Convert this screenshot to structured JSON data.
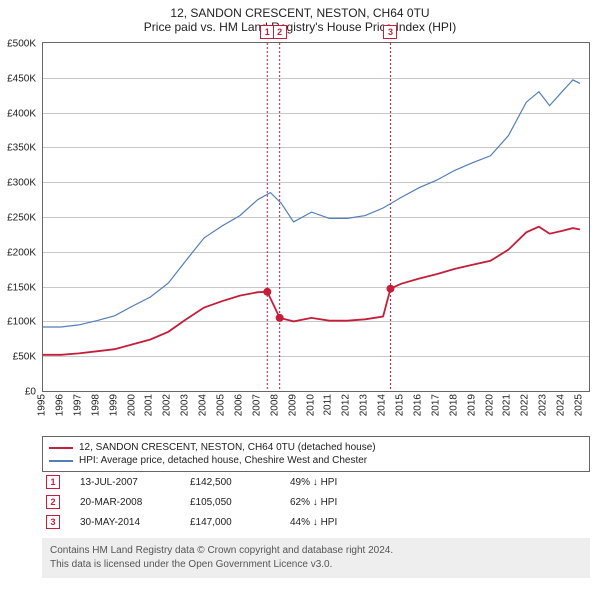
{
  "title_line1": "12, SANDON CRESCENT, NESTON, CH64 0TU",
  "title_line2": "Price paid vs. HM Land Registry's House Price Index (HPI)",
  "chart": {
    "y_min": 0,
    "y_max": 500000,
    "y_step": 50000,
    "y_prefix": "£",
    "y_suffix_k": "K",
    "x_min": 1995,
    "x_max": 2025.5,
    "x_ticks": [
      1995,
      1996,
      1997,
      1998,
      1999,
      2000,
      2001,
      2002,
      2003,
      2004,
      2005,
      2006,
      2007,
      2008,
      2009,
      2010,
      2011,
      2012,
      2013,
      2014,
      2015,
      2016,
      2017,
      2018,
      2019,
      2020,
      2021,
      2022,
      2023,
      2024,
      2025
    ],
    "grid_color": "#c8c8c8",
    "border_color": "#666666",
    "series": [
      {
        "name": "hpi",
        "color": "#527fb9",
        "width": 1.2,
        "points": [
          [
            1995,
            92000
          ],
          [
            1996,
            92000
          ],
          [
            1997,
            95000
          ],
          [
            1998,
            101000
          ],
          [
            1999,
            108000
          ],
          [
            2000,
            122000
          ],
          [
            2001,
            135000
          ],
          [
            2002,
            155000
          ],
          [
            2003,
            188000
          ],
          [
            2004,
            220000
          ],
          [
            2005,
            237000
          ],
          [
            2006,
            252000
          ],
          [
            2007,
            275000
          ],
          [
            2007.7,
            285000
          ],
          [
            2008.3,
            270000
          ],
          [
            2009,
            243000
          ],
          [
            2010,
            257000
          ],
          [
            2011,
            248000
          ],
          [
            2012,
            248000
          ],
          [
            2013,
            252000
          ],
          [
            2014,
            263000
          ],
          [
            2015,
            278000
          ],
          [
            2016,
            292000
          ],
          [
            2017,
            303000
          ],
          [
            2018,
            317000
          ],
          [
            2019,
            328000
          ],
          [
            2020,
            338000
          ],
          [
            2021,
            367000
          ],
          [
            2022,
            415000
          ],
          [
            2022.7,
            430000
          ],
          [
            2023.3,
            410000
          ],
          [
            2024,
            430000
          ],
          [
            2024.6,
            447000
          ],
          [
            2025,
            442000
          ]
        ]
      },
      {
        "name": "property",
        "color": "#c41e3a",
        "width": 1.8,
        "points": [
          [
            1995,
            52000
          ],
          [
            1996,
            52000
          ],
          [
            1997,
            54000
          ],
          [
            1998,
            57000
          ],
          [
            1999,
            60000
          ],
          [
            2000,
            67000
          ],
          [
            2001,
            74000
          ],
          [
            2002,
            85000
          ],
          [
            2003,
            103000
          ],
          [
            2004,
            120000
          ],
          [
            2005,
            129000
          ],
          [
            2006,
            137000
          ],
          [
            2007,
            142000
          ],
          [
            2007.53,
            142500
          ],
          [
            2008.22,
            105050
          ],
          [
            2009,
            100000
          ],
          [
            2010,
            105000
          ],
          [
            2011,
            101000
          ],
          [
            2012,
            101000
          ],
          [
            2013,
            103000
          ],
          [
            2014,
            107000
          ],
          [
            2014.41,
            147000
          ],
          [
            2015,
            154000
          ],
          [
            2016,
            161500
          ],
          [
            2017,
            168000
          ],
          [
            2018,
            175500
          ],
          [
            2019,
            181500
          ],
          [
            2020,
            187000
          ],
          [
            2021,
            203000
          ],
          [
            2022,
            228000
          ],
          [
            2022.7,
            236000
          ],
          [
            2023.3,
            226000
          ],
          [
            2024,
            230000
          ],
          [
            2024.6,
            234000
          ],
          [
            2025,
            232000
          ]
        ]
      }
    ],
    "sale_markers": [
      {
        "n": "1",
        "x": 2007.53,
        "y": 142500
      },
      {
        "n": "2",
        "x": 2008.22,
        "y": 105050
      },
      {
        "n": "3",
        "x": 2014.41,
        "y": 147000
      }
    ]
  },
  "legend": {
    "items": [
      {
        "color": "#c41e3a",
        "label": "12, SANDON CRESCENT, NESTON, CH64 0TU (detached house)"
      },
      {
        "color": "#527fb9",
        "label": "HPI: Average price, detached house, Cheshire West and Chester"
      }
    ]
  },
  "sales": [
    {
      "n": "1",
      "date": "13-JUL-2007",
      "price": "£142,500",
      "delta": "49% ↓ HPI"
    },
    {
      "n": "2",
      "date": "20-MAR-2008",
      "price": "£105,050",
      "delta": "62% ↓ HPI"
    },
    {
      "n": "3",
      "date": "30-MAY-2014",
      "price": "£147,000",
      "delta": "44% ↓ HPI"
    }
  ],
  "footer_line1": "Contains HM Land Registry data © Crown copyright and database right 2024.",
  "footer_line2": "This data is licensed under the Open Government Licence v3.0."
}
